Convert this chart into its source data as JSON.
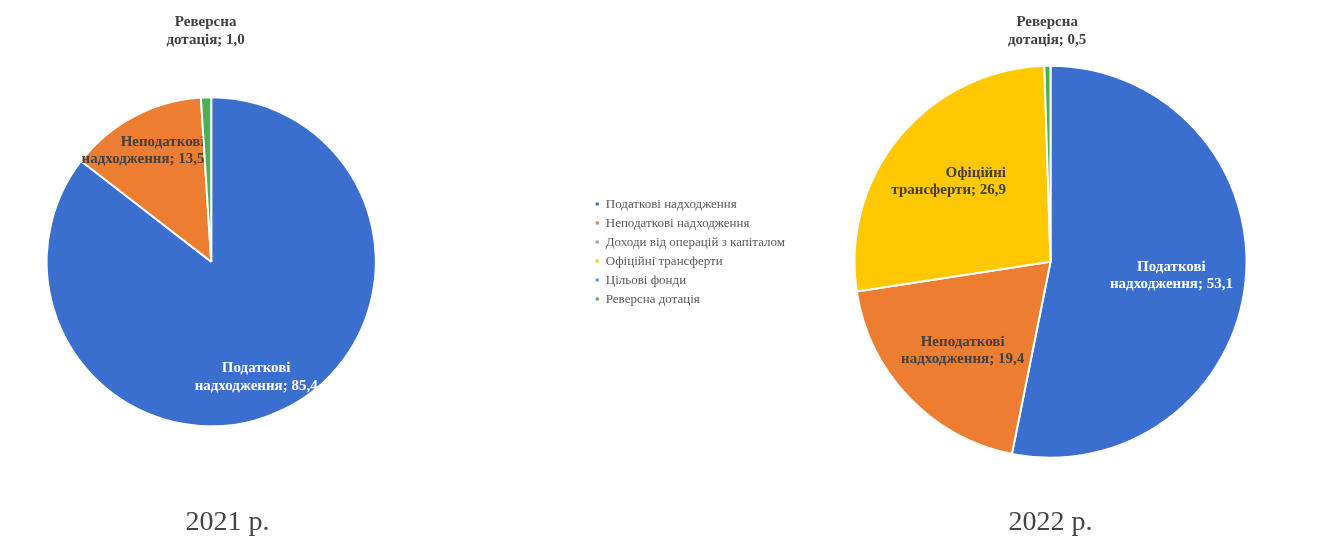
{
  "chart_data": [
    {
      "type": "pie",
      "title": "2021 р.",
      "categories": [
        "Податкові надходження",
        "Неподаткові надходження",
        "Доходи від операцій з капіталом",
        "Офіційні трансферти",
        "Цільові фонди",
        "Реверсна дотація"
      ],
      "values": [
        85.4,
        13.5,
        0,
        0,
        0,
        1.0
      ],
      "colors": [
        "#3a6fd0",
        "#ed7d31",
        "#a5a5a5",
        "#ffc800",
        "#5b9bd5",
        "#4caf50"
      ],
      "value_labels": [
        "; 85,4",
        "; 13,5",
        null,
        null,
        null,
        "; 1,0"
      ],
      "legend": "right"
    },
    {
      "type": "pie",
      "title": "2022 р.",
      "categories": [
        "Податкові надходження",
        "Неподаткові надходження",
        "Офіційні трансферти",
        "Реверсна дотація"
      ],
      "values": [
        53.1,
        19.4,
        26.9,
        0.5
      ],
      "colors": [
        "#3a6fd0",
        "#ed7d31",
        "#ffc800",
        "#4caf50"
      ],
      "value_labels": [
        "; 53,1",
        "; 19,4",
        "; 26,9",
        "; 0,5"
      ],
      "legend": false
    }
  ]
}
